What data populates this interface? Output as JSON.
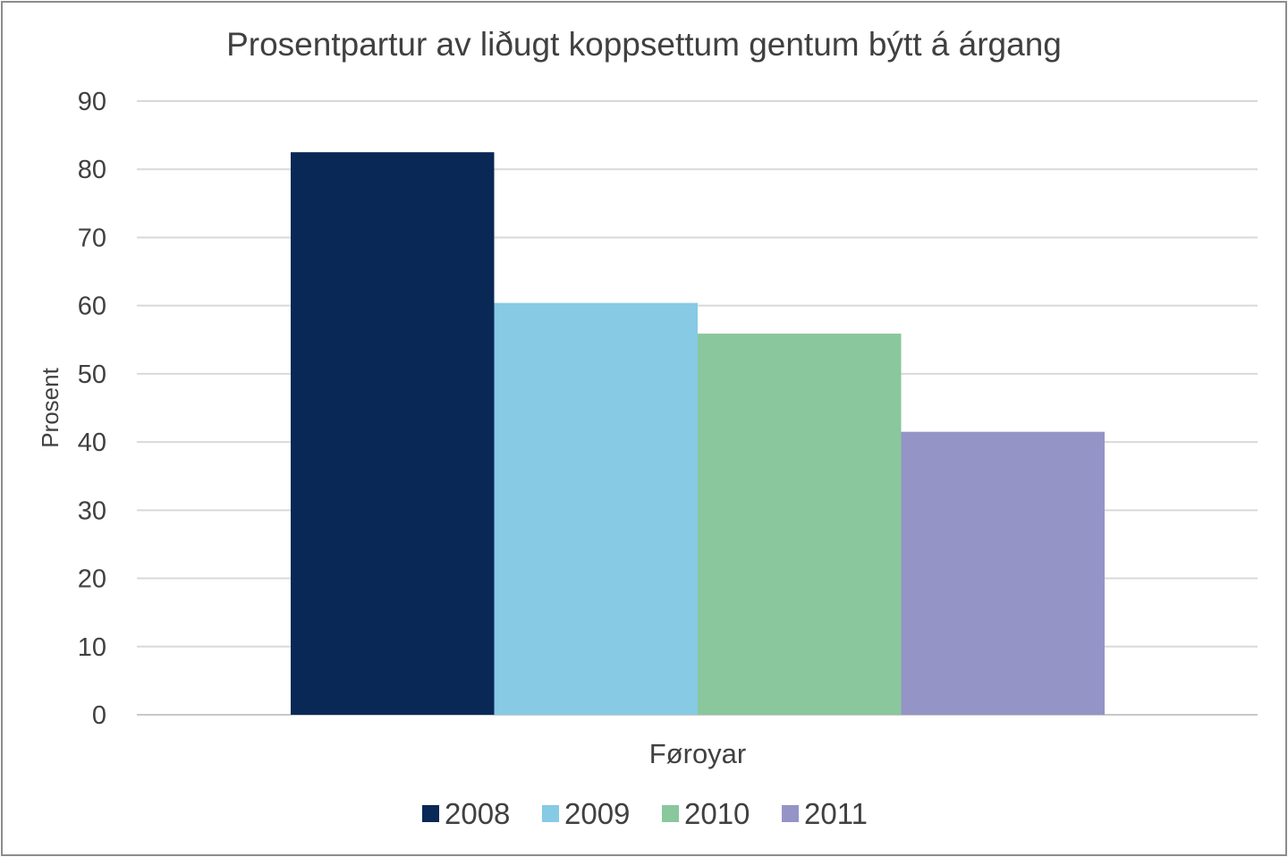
{
  "chart_data": {
    "type": "bar",
    "title": "Prosentpartur av liðugt koppsettum gentum býtt á árgang",
    "ylabel": "Prosent",
    "xlabel": "",
    "categories": [
      "Føroyar"
    ],
    "ylim": [
      0,
      90
    ],
    "yticks": [
      "0",
      "10",
      "20",
      "30",
      "40",
      "50",
      "60",
      "70",
      "80",
      "90"
    ],
    "grid": true,
    "legend_position": "bottom",
    "series": [
      {
        "name": "2008",
        "color": "#0a2856",
        "values": [
          82.5
        ]
      },
      {
        "name": "2009",
        "color": "#86cae4",
        "values": [
          60.4
        ]
      },
      {
        "name": "2010",
        "color": "#8ac79c",
        "values": [
          55.9
        ]
      },
      {
        "name": "2011",
        "color": "#9594c6",
        "values": [
          41.5
        ]
      }
    ]
  }
}
